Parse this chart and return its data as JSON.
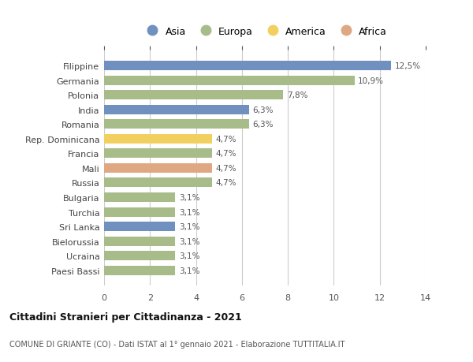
{
  "countries": [
    "Filippine",
    "Germania",
    "Polonia",
    "India",
    "Romania",
    "Rep. Dominicana",
    "Francia",
    "Mali",
    "Russia",
    "Bulgaria",
    "Turchia",
    "Sri Lanka",
    "Bielorussia",
    "Ucraina",
    "Paesi Bassi"
  ],
  "values": [
    12.5,
    10.9,
    7.8,
    6.3,
    6.3,
    4.7,
    4.7,
    4.7,
    4.7,
    3.1,
    3.1,
    3.1,
    3.1,
    3.1,
    3.1
  ],
  "labels": [
    "12,5%",
    "10,9%",
    "7,8%",
    "6,3%",
    "6,3%",
    "4,7%",
    "4,7%",
    "4,7%",
    "4,7%",
    "3,1%",
    "3,1%",
    "3,1%",
    "3,1%",
    "3,1%",
    "3,1%"
  ],
  "continents": [
    "Asia",
    "Europa",
    "Europa",
    "Asia",
    "Europa",
    "America",
    "Europa",
    "Africa",
    "Europa",
    "Europa",
    "Europa",
    "Asia",
    "Europa",
    "Europa",
    "Europa"
  ],
  "colors": {
    "Asia": "#7090bf",
    "Europa": "#a8bc8a",
    "America": "#f2d060",
    "Africa": "#dfa882"
  },
  "legend_labels": [
    "Asia",
    "Europa",
    "America",
    "Africa"
  ],
  "legend_colors": [
    "#7090bf",
    "#a8bc8a",
    "#f2d060",
    "#dfa882"
  ],
  "xlim": [
    0,
    14
  ],
  "xticks": [
    0,
    2,
    4,
    6,
    8,
    10,
    12,
    14
  ],
  "title": "Cittadini Stranieri per Cittadinanza - 2021",
  "subtitle": "COMUNE DI GRIANTE (CO) - Dati ISTAT al 1° gennaio 2021 - Elaborazione TUTTITALIA.IT",
  "bg_color": "#ffffff",
  "grid_color": "#cccccc",
  "bar_height": 0.65
}
